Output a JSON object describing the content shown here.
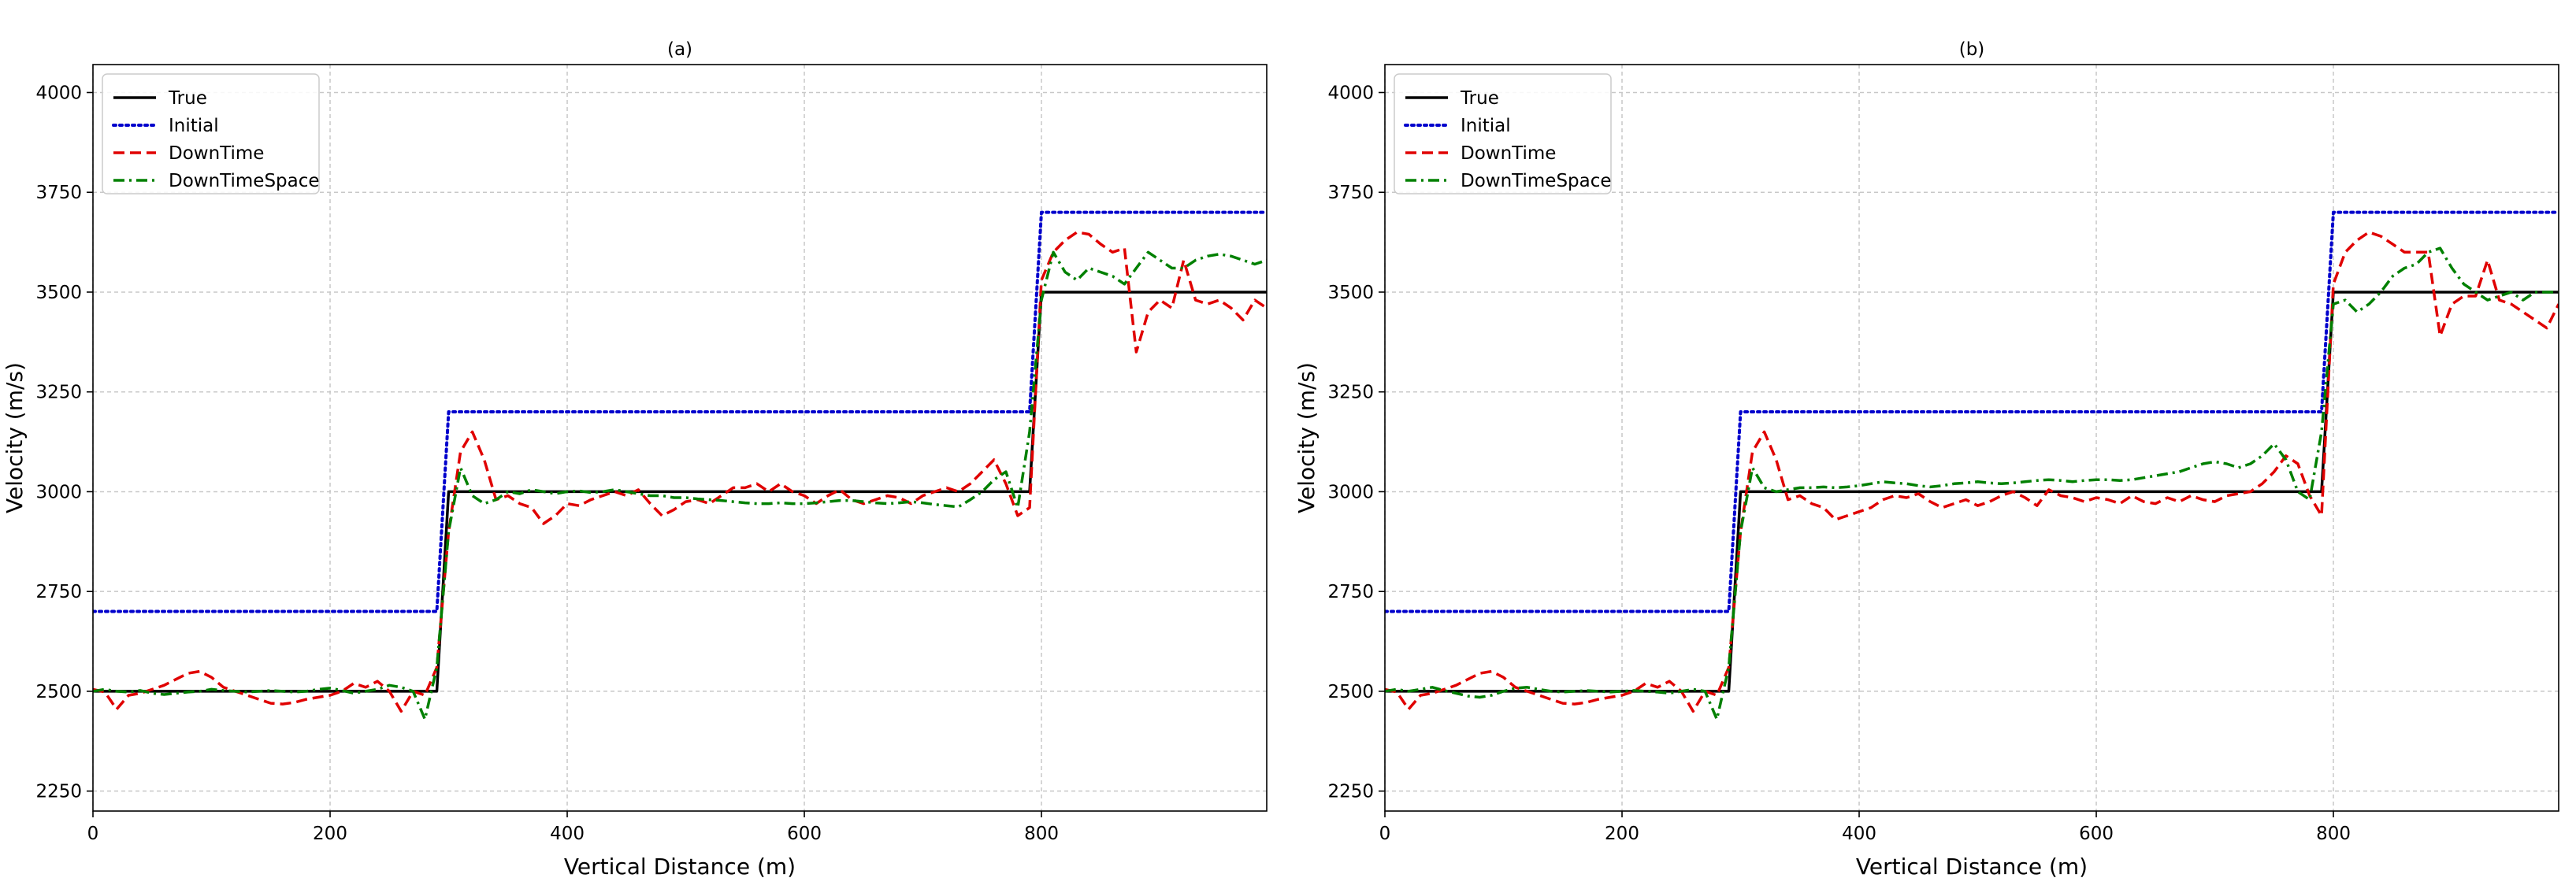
{
  "chart_data": [
    {
      "type": "line",
      "title": "(a)",
      "xlabel": "Vertical Distance (m)",
      "ylabel": "Velocity (m/s)",
      "xlim": [
        0,
        990
      ],
      "ylim": [
        2200,
        4070
      ],
      "xticks": [
        0,
        200,
        400,
        600,
        800
      ],
      "yticks": [
        2250,
        2500,
        2750,
        3000,
        3250,
        3500,
        3750,
        4000
      ],
      "grid": true,
      "legend_position": "top-left",
      "series": [
        {
          "name": "True",
          "color": "#000000",
          "style": "solid",
          "x": [
            0,
            290,
            300,
            790,
            800,
            990
          ],
          "y": [
            2500,
            2500,
            3000,
            3000,
            3500,
            3500
          ]
        },
        {
          "name": "Initial",
          "color": "#0000cc",
          "style": "dotted",
          "x": [
            0,
            290,
            300,
            790,
            800,
            990
          ],
          "y": [
            2700,
            2700,
            3200,
            3200,
            3700,
            3700
          ]
        },
        {
          "name": "DownTime",
          "color": "#e00000",
          "style": "dashed",
          "x": [
            0,
            10,
            20,
            30,
            40,
            50,
            60,
            70,
            80,
            90,
            100,
            110,
            120,
            130,
            140,
            150,
            160,
            170,
            180,
            190,
            200,
            210,
            220,
            230,
            240,
            250,
            260,
            270,
            280,
            290,
            300,
            310,
            320,
            330,
            340,
            350,
            360,
            370,
            380,
            390,
            400,
            410,
            420,
            430,
            440,
            450,
            460,
            470,
            480,
            490,
            500,
            510,
            520,
            530,
            540,
            550,
            560,
            570,
            580,
            590,
            600,
            610,
            620,
            630,
            640,
            650,
            660,
            670,
            680,
            690,
            700,
            710,
            720,
            730,
            740,
            750,
            760,
            770,
            780,
            790,
            800,
            810,
            820,
            830,
            840,
            850,
            860,
            870,
            880,
            890,
            900,
            910,
            920,
            930,
            940,
            950,
            960,
            970,
            980,
            990
          ],
          "y": [
            2505,
            2498,
            2455,
            2490,
            2495,
            2505,
            2515,
            2530,
            2545,
            2550,
            2535,
            2510,
            2500,
            2490,
            2480,
            2470,
            2468,
            2472,
            2480,
            2485,
            2490,
            2500,
            2520,
            2510,
            2525,
            2500,
            2450,
            2500,
            2490,
            2560,
            2900,
            3100,
            3150,
            3080,
            2980,
            2990,
            2970,
            2960,
            2920,
            2940,
            2970,
            2965,
            2980,
            2990,
            3000,
            2990,
            3005,
            2970,
            2940,
            2955,
            2975,
            2980,
            2970,
            2990,
            3010,
            3010,
            3020,
            3000,
            3020,
            3000,
            2990,
            2970,
            2990,
            3005,
            2980,
            2970,
            2980,
            2990,
            2985,
            2970,
            2990,
            3000,
            3010,
            3000,
            3020,
            3050,
            3080,
            3020,
            2940,
            2960,
            3530,
            3600,
            3630,
            3650,
            3645,
            3620,
            3600,
            3610,
            3350,
            3450,
            3480,
            3460,
            3580,
            3480,
            3470,
            3480,
            3460,
            3430,
            3480,
            3460
          ]
        },
        {
          "name": "DownTimeSpace",
          "color": "#008000",
          "style": "dashdot",
          "x": [
            0,
            10,
            20,
            30,
            40,
            50,
            60,
            70,
            80,
            90,
            100,
            110,
            120,
            130,
            140,
            150,
            160,
            170,
            180,
            190,
            200,
            210,
            220,
            230,
            240,
            250,
            260,
            270,
            280,
            290,
            300,
            310,
            320,
            330,
            340,
            350,
            360,
            370,
            380,
            390,
            400,
            410,
            420,
            430,
            440,
            450,
            460,
            470,
            480,
            490,
            500,
            510,
            520,
            530,
            540,
            550,
            560,
            570,
            580,
            590,
            600,
            610,
            620,
            630,
            640,
            650,
            660,
            670,
            680,
            690,
            700,
            710,
            720,
            730,
            740,
            750,
            760,
            770,
            780,
            790,
            800,
            810,
            820,
            830,
            840,
            850,
            860,
            870,
            880,
            890,
            900,
            910,
            920,
            930,
            940,
            950,
            960,
            970,
            980,
            990
          ],
          "y": [
            2500,
            2505,
            2500,
            2498,
            2502,
            2495,
            2492,
            2495,
            2498,
            2500,
            2505,
            2502,
            2500,
            2498,
            2500,
            2502,
            2500,
            2498,
            2500,
            2505,
            2508,
            2502,
            2495,
            2500,
            2505,
            2515,
            2510,
            2500,
            2430,
            2560,
            2900,
            3060,
            2990,
            2970,
            2980,
            3000,
            2995,
            3005,
            3000,
            2995,
            3000,
            3002,
            2998,
            3000,
            3005,
            3000,
            2995,
            2990,
            2990,
            2985,
            2985,
            2982,
            2980,
            2978,
            2975,
            2972,
            2970,
            2970,
            2972,
            2970,
            2970,
            2972,
            2975,
            2978,
            2978,
            2975,
            2972,
            2970,
            2972,
            2975,
            2972,
            2968,
            2965,
            2962,
            2980,
            3000,
            3030,
            3050,
            2960,
            3150,
            3480,
            3600,
            3550,
            3530,
            3560,
            3550,
            3540,
            3520,
            3560,
            3600,
            3580,
            3560,
            3560,
            3580,
            3590,
            3595,
            3590,
            3580,
            3570,
            3580
          ]
        }
      ]
    },
    {
      "type": "line",
      "title": "(b)",
      "xlabel": "Vertical Distance (m)",
      "ylabel": "Velocity (m/s)",
      "xlim": [
        0,
        990
      ],
      "ylim": [
        2200,
        4070
      ],
      "xticks": [
        0,
        200,
        400,
        600,
        800
      ],
      "yticks": [
        2250,
        2500,
        2750,
        3000,
        3250,
        3500,
        3750,
        4000
      ],
      "grid": true,
      "legend_position": "top-left",
      "series": [
        {
          "name": "True",
          "color": "#000000",
          "style": "solid",
          "x": [
            0,
            290,
            300,
            790,
            800,
            990
          ],
          "y": [
            2500,
            2500,
            3000,
            3000,
            3500,
            3500
          ]
        },
        {
          "name": "Initial",
          "color": "#0000cc",
          "style": "dotted",
          "x": [
            0,
            290,
            300,
            790,
            800,
            990
          ],
          "y": [
            2700,
            2700,
            3200,
            3200,
            3700,
            3700
          ]
        },
        {
          "name": "DownTime",
          "color": "#e00000",
          "style": "dashed",
          "x": [
            0,
            10,
            20,
            30,
            40,
            50,
            60,
            70,
            80,
            90,
            100,
            110,
            120,
            130,
            140,
            150,
            160,
            170,
            180,
            190,
            200,
            210,
            220,
            230,
            240,
            250,
            260,
            270,
            280,
            290,
            300,
            310,
            320,
            330,
            340,
            350,
            360,
            370,
            380,
            390,
            400,
            410,
            420,
            430,
            440,
            450,
            460,
            470,
            480,
            490,
            500,
            510,
            520,
            530,
            540,
            550,
            560,
            570,
            580,
            590,
            600,
            610,
            620,
            630,
            640,
            650,
            660,
            670,
            680,
            690,
            700,
            710,
            720,
            730,
            740,
            750,
            760,
            770,
            780,
            790,
            800,
            810,
            820,
            830,
            840,
            850,
            860,
            870,
            880,
            890,
            900,
            910,
            920,
            930,
            940,
            950,
            960,
            970,
            980,
            990
          ],
          "y": [
            2505,
            2498,
            2455,
            2490,
            2495,
            2505,
            2515,
            2530,
            2545,
            2550,
            2535,
            2510,
            2500,
            2490,
            2480,
            2470,
            2468,
            2472,
            2480,
            2485,
            2490,
            2500,
            2520,
            2510,
            2525,
            2500,
            2450,
            2500,
            2490,
            2560,
            2900,
            3100,
            3150,
            3080,
            2980,
            2990,
            2970,
            2960,
            2930,
            2940,
            2950,
            2960,
            2980,
            2990,
            2985,
            2995,
            2975,
            2960,
            2970,
            2980,
            2965,
            2975,
            2990,
            3000,
            2985,
            2965,
            3005,
            2990,
            2985,
            2975,
            2985,
            2980,
            2970,
            2990,
            2975,
            2970,
            2985,
            2975,
            2990,
            2980,
            2975,
            2990,
            2995,
            3000,
            3020,
            3050,
            3090,
            3070,
            2990,
            2940,
            3520,
            3600,
            3630,
            3650,
            3640,
            3620,
            3600,
            3600,
            3600,
            3390,
            3470,
            3490,
            3490,
            3580,
            3480,
            3470,
            3450,
            3430,
            3410,
            3470
          ]
        },
        {
          "name": "DownTimeSpace",
          "color": "#008000",
          "style": "dashdot",
          "x": [
            0,
            10,
            20,
            30,
            40,
            50,
            60,
            70,
            80,
            90,
            100,
            110,
            120,
            130,
            140,
            150,
            160,
            170,
            180,
            190,
            200,
            210,
            220,
            230,
            240,
            250,
            260,
            270,
            280,
            290,
            300,
            310,
            320,
            330,
            340,
            350,
            360,
            370,
            380,
            390,
            400,
            410,
            420,
            430,
            440,
            450,
            460,
            470,
            480,
            490,
            500,
            510,
            520,
            530,
            540,
            550,
            560,
            570,
            580,
            590,
            600,
            610,
            620,
            630,
            640,
            650,
            660,
            670,
            680,
            690,
            700,
            710,
            720,
            730,
            740,
            750,
            760,
            770,
            780,
            790,
            800,
            810,
            820,
            830,
            840,
            850,
            860,
            870,
            880,
            890,
            900,
            910,
            920,
            930,
            940,
            950,
            960,
            970,
            980,
            990
          ],
          "y": [
            2500,
            2505,
            2500,
            2505,
            2510,
            2502,
            2495,
            2488,
            2485,
            2490,
            2500,
            2508,
            2510,
            2505,
            2500,
            2498,
            2500,
            2502,
            2500,
            2498,
            2500,
            2502,
            2500,
            2498,
            2495,
            2500,
            2505,
            2500,
            2430,
            2560,
            2900,
            3060,
            3010,
            3000,
            3005,
            3010,
            3010,
            3012,
            3010,
            3012,
            3015,
            3020,
            3025,
            3022,
            3020,
            3015,
            3012,
            3015,
            3020,
            3022,
            3025,
            3022,
            3020,
            3022,
            3025,
            3028,
            3030,
            3028,
            3025,
            3028,
            3030,
            3030,
            3028,
            3030,
            3035,
            3040,
            3045,
            3050,
            3060,
            3070,
            3075,
            3070,
            3060,
            3070,
            3090,
            3120,
            3080,
            3000,
            2980,
            3150,
            3470,
            3480,
            3450,
            3470,
            3500,
            3540,
            3560,
            3570,
            3600,
            3610,
            3560,
            3520,
            3500,
            3480,
            3490,
            3500,
            3480,
            3500,
            3500,
            3500
          ]
        }
      ]
    }
  ]
}
